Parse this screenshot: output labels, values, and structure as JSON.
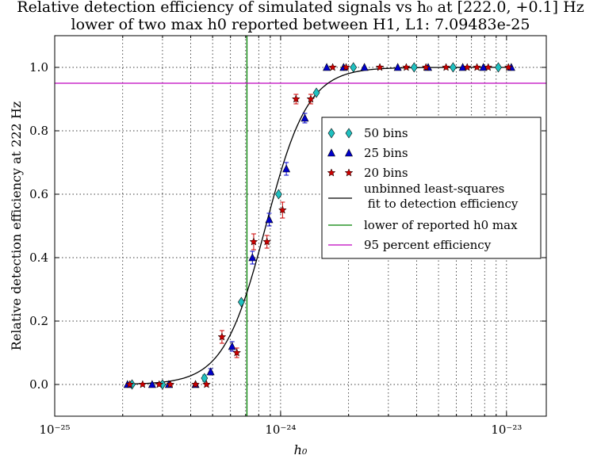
{
  "chart_data": {
    "type": "scatter",
    "title_lines": [
      "Relative detection efficiency of simulated signals vs h₀ at [222.0, +0.1]  Hz",
      "lower of two max h0 reported between H1, L1: 7.09483e-25"
    ],
    "xlabel": "h₀",
    "ylabel": "Relative detection efficiency at 222 Hz",
    "x_scale": "log",
    "xlim": [
      1e-25,
      1.5e-23
    ],
    "ylim": [
      -0.1,
      1.1
    ],
    "x_ticks": [
      {
        "value": 1e-25,
        "label": "10⁻²⁵"
      },
      {
        "value": 1e-24,
        "label": "10⁻²⁴"
      },
      {
        "value": 1e-23,
        "label": "10⁻²³"
      }
    ],
    "y_ticks": [
      "0.0",
      "0.2",
      "0.4",
      "0.6",
      "0.8",
      "1.0"
    ],
    "grid": true,
    "legend_position": "center-right",
    "series": [
      {
        "name": "50 bins",
        "marker": "diamond",
        "color": "#20c0c0",
        "points": [
          {
            "x": 2.2e-25,
            "y": 0.0,
            "err": 0.0
          },
          {
            "x": 3e-25,
            "y": 0.0,
            "err": 0.0
          },
          {
            "x": 4.6e-25,
            "y": 0.02,
            "err": 0.01
          },
          {
            "x": 6.7e-25,
            "y": 0.26,
            "err": 0.0
          },
          {
            "x": 9.8e-25,
            "y": 0.6,
            "err": 0.0
          },
          {
            "x": 1.44e-24,
            "y": 0.92,
            "err": 0.0
          },
          {
            "x": 2.1e-24,
            "y": 1.0,
            "err": 0.0
          },
          {
            "x": 3.9e-24,
            "y": 1.0,
            "err": 0.0
          },
          {
            "x": 5.8e-24,
            "y": 1.0,
            "err": 0.0
          },
          {
            "x": 9.2e-24,
            "y": 1.0,
            "err": 0.0
          }
        ]
      },
      {
        "name": "25 bins",
        "marker": "triangle",
        "color": "#0000cc",
        "points": [
          {
            "x": 2.1e-25,
            "y": 0.0,
            "err": 0.0
          },
          {
            "x": 2.7e-25,
            "y": 0.0,
            "err": 0.0
          },
          {
            "x": 3.2e-25,
            "y": 0.0,
            "err": 0.0
          },
          {
            "x": 4.2e-25,
            "y": 0.0,
            "err": 0.0
          },
          {
            "x": 4.9e-25,
            "y": 0.04,
            "err": 0.01
          },
          {
            "x": 6.1e-25,
            "y": 0.12,
            "err": 0.015
          },
          {
            "x": 7.5e-25,
            "y": 0.4,
            "err": 0.02
          },
          {
            "x": 8.9e-25,
            "y": 0.52,
            "err": 0.02
          },
          {
            "x": 1.06e-24,
            "y": 0.68,
            "err": 0.02
          },
          {
            "x": 1.28e-24,
            "y": 0.84,
            "err": 0.015
          },
          {
            "x": 1.6e-24,
            "y": 1.0,
            "err": 0.0
          },
          {
            "x": 1.9e-24,
            "y": 1.0,
            "err": 0.0
          },
          {
            "x": 2.35e-24,
            "y": 1.0,
            "err": 0.0
          },
          {
            "x": 3.3e-24,
            "y": 1.0,
            "err": 0.0
          },
          {
            "x": 4.5e-24,
            "y": 1.0,
            "err": 0.0
          },
          {
            "x": 6.4e-24,
            "y": 1.0,
            "err": 0.0
          },
          {
            "x": 7.9e-24,
            "y": 1.0,
            "err": 0.0
          },
          {
            "x": 1.05e-23,
            "y": 1.0,
            "err": 0.0
          }
        ]
      },
      {
        "name": "20 bins",
        "marker": "star",
        "color": "#cc0000",
        "points": [
          {
            "x": 2.15e-25,
            "y": 0.0,
            "err": 0.0
          },
          {
            "x": 2.45e-25,
            "y": 0.0,
            "err": 0.0
          },
          {
            "x": 2.9e-25,
            "y": 0.0,
            "err": 0.0
          },
          {
            "x": 3.25e-25,
            "y": 0.0,
            "err": 0.0
          },
          {
            "x": 4.2e-25,
            "y": 0.0,
            "err": 0.0
          },
          {
            "x": 4.7e-25,
            "y": 0.0,
            "err": 0.0
          },
          {
            "x": 5.5e-25,
            "y": 0.15,
            "err": 0.02
          },
          {
            "x": 6.4e-25,
            "y": 0.1,
            "err": 0.015
          },
          {
            "x": 7.6e-25,
            "y": 0.45,
            "err": 0.025
          },
          {
            "x": 8.7e-25,
            "y": 0.45,
            "err": 0.02
          },
          {
            "x": 1.02e-24,
            "y": 0.55,
            "err": 0.025
          },
          {
            "x": 1.17e-24,
            "y": 0.9,
            "err": 0.015
          },
          {
            "x": 1.36e-24,
            "y": 0.9,
            "err": 0.015
          },
          {
            "x": 1.7e-24,
            "y": 1.0,
            "err": 0.0
          },
          {
            "x": 1.95e-24,
            "y": 1.0,
            "err": 0.0
          },
          {
            "x": 2.75e-24,
            "y": 1.0,
            "err": 0.0
          },
          {
            "x": 3.6e-24,
            "y": 1.0,
            "err": 0.0
          },
          {
            "x": 4.4e-24,
            "y": 1.0,
            "err": 0.0
          },
          {
            "x": 5.4e-24,
            "y": 1.0,
            "err": 0.0
          },
          {
            "x": 6.7e-24,
            "y": 1.0,
            "err": 0.0
          },
          {
            "x": 7.4e-24,
            "y": 1.0,
            "err": 0.0
          },
          {
            "x": 8.3e-24,
            "y": 1.0,
            "err": 0.0
          },
          {
            "x": 1.02e-23,
            "y": 1.0,
            "err": 0.0
          }
        ]
      }
    ],
    "fit": {
      "name": "unbinned least-squares fit to detection efficiency",
      "name_lines": [
        "unbinned least-squares",
        " fit to detection efficiency"
      ],
      "color": "#000000",
      "model": "logistic in log10(h0)",
      "midpoint_h0": 8.6e-25,
      "slope_per_decade": 10.7,
      "x_range": [
        2.1e-25,
        1.05e-23
      ]
    },
    "vline": {
      "name": "lower of reported h0 max",
      "x": 7.09483e-25,
      "color": "#008000"
    },
    "hline": {
      "name": "95 percent efficiency",
      "y": 0.95,
      "color": "#bf00bf"
    }
  }
}
